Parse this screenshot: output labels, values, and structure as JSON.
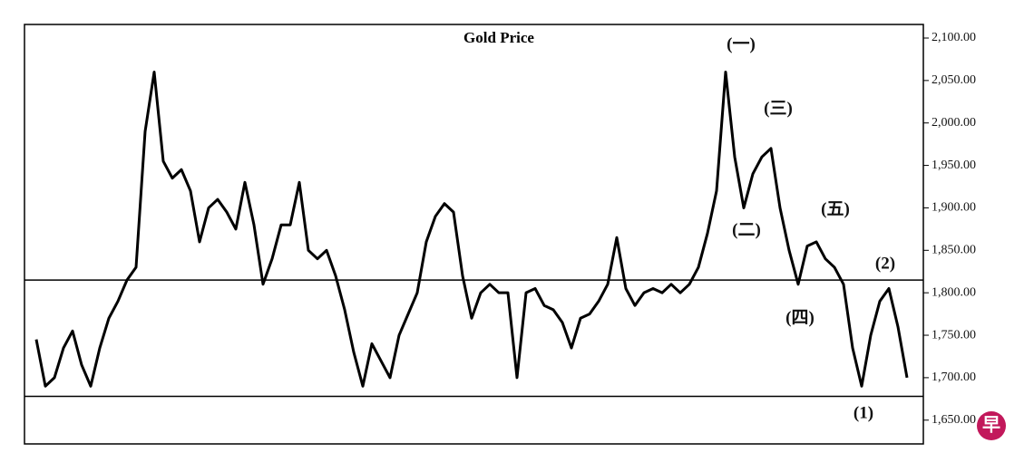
{
  "chart_data": {
    "type": "line",
    "title": "Gold Price",
    "values": [
      1745,
      1690,
      1700,
      1735,
      1755,
      1715,
      1690,
      1735,
      1770,
      1790,
      1815,
      1830,
      1990,
      2060,
      1955,
      1935,
      1945,
      1920,
      1860,
      1900,
      1910,
      1895,
      1875,
      1930,
      1880,
      1810,
      1840,
      1880,
      1880,
      1930,
      1850,
      1840,
      1850,
      1820,
      1780,
      1730,
      1690,
      1740,
      1720,
      1700,
      1750,
      1775,
      1800,
      1860,
      1890,
      1905,
      1895,
      1820,
      1770,
      1800,
      1810,
      1800,
      1800,
      1700,
      1800,
      1805,
      1785,
      1780,
      1765,
      1735,
      1770,
      1775,
      1790,
      1810,
      1865,
      1805,
      1785,
      1800,
      1805,
      1800,
      1810,
      1800,
      1810,
      1830,
      1870,
      1920,
      2060,
      1960,
      1900,
      1940,
      1960,
      1970,
      1900,
      1850,
      1810,
      1855,
      1860,
      1840,
      1830,
      1810,
      1735,
      1690,
      1750,
      1790,
      1805,
      1760,
      1700
    ],
    "color": "#000000",
    "ylim": [
      1622,
      2116
    ],
    "yticks": [
      {
        "value": 1650,
        "label": "1,650.00"
      },
      {
        "value": 1700,
        "label": "1,700.00"
      },
      {
        "value": 1750,
        "label": "1,750.00"
      },
      {
        "value": 1800,
        "label": "1,800.00"
      },
      {
        "value": 1850,
        "label": "1,850.00"
      },
      {
        "value": 1900,
        "label": "1,900.00"
      },
      {
        "value": 1950,
        "label": "1,950.00"
      },
      {
        "value": 2000,
        "label": "2,000.00"
      },
      {
        "value": 2050,
        "label": "2,050.00"
      },
      {
        "value": 2100,
        "label": "2,100.00"
      }
    ],
    "reference_lines": [
      1815,
      1678
    ],
    "annotations": [
      "(一)",
      "(二)",
      "(三)",
      "(四)",
      "(五)",
      "(1)",
      "(2)"
    ],
    "logo": "早"
  }
}
